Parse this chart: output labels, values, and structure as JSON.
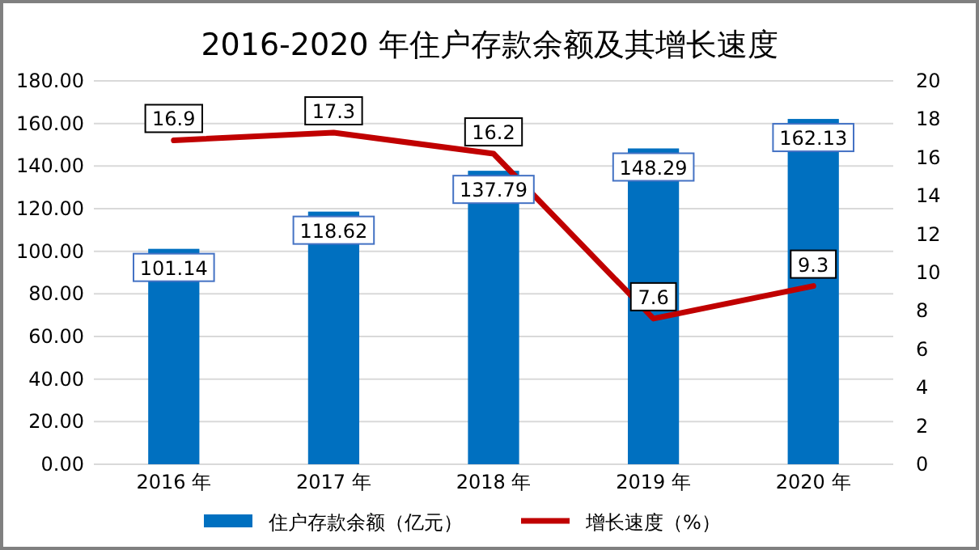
{
  "chart_data": {
    "type": "bar",
    "title": "2016-2020 年住户存款余额及其增长速度",
    "categories": [
      "2016 年",
      "2017 年",
      "2018 年",
      "2019 年",
      "2020 年"
    ],
    "series": [
      {
        "name": "住户存款余额（亿元）",
        "type": "bar",
        "color": "#0070c0",
        "values": [
          101.14,
          118.62,
          137.79,
          148.29,
          162.13
        ]
      },
      {
        "name": "增长速度（%）",
        "type": "line",
        "axis": "y2",
        "color": "#c00000",
        "values": [
          16.9,
          17.3,
          16.2,
          7.6,
          9.3
        ]
      }
    ],
    "ylim": [
      0,
      180
    ],
    "yticks": [
      {
        "value": 0,
        "label": "0.00"
      },
      {
        "value": 20,
        "label": "20.00"
      },
      {
        "value": 40,
        "label": "40.00"
      },
      {
        "value": 60,
        "label": "60.00"
      },
      {
        "value": 80,
        "label": "80.00"
      },
      {
        "value": 100,
        "label": "100.00"
      },
      {
        "value": 120,
        "label": "120.00"
      },
      {
        "value": 140,
        "label": "140.00"
      },
      {
        "value": 160,
        "label": "160.00"
      },
      {
        "value": 180,
        "label": "180.00"
      }
    ],
    "y2lim": [
      0,
      20
    ],
    "y2ticks": [
      0,
      2,
      4,
      6,
      8,
      10,
      12,
      14,
      16,
      18,
      20
    ],
    "grid": "y",
    "legend": "bottom",
    "data_labels": true,
    "marker": "none"
  }
}
